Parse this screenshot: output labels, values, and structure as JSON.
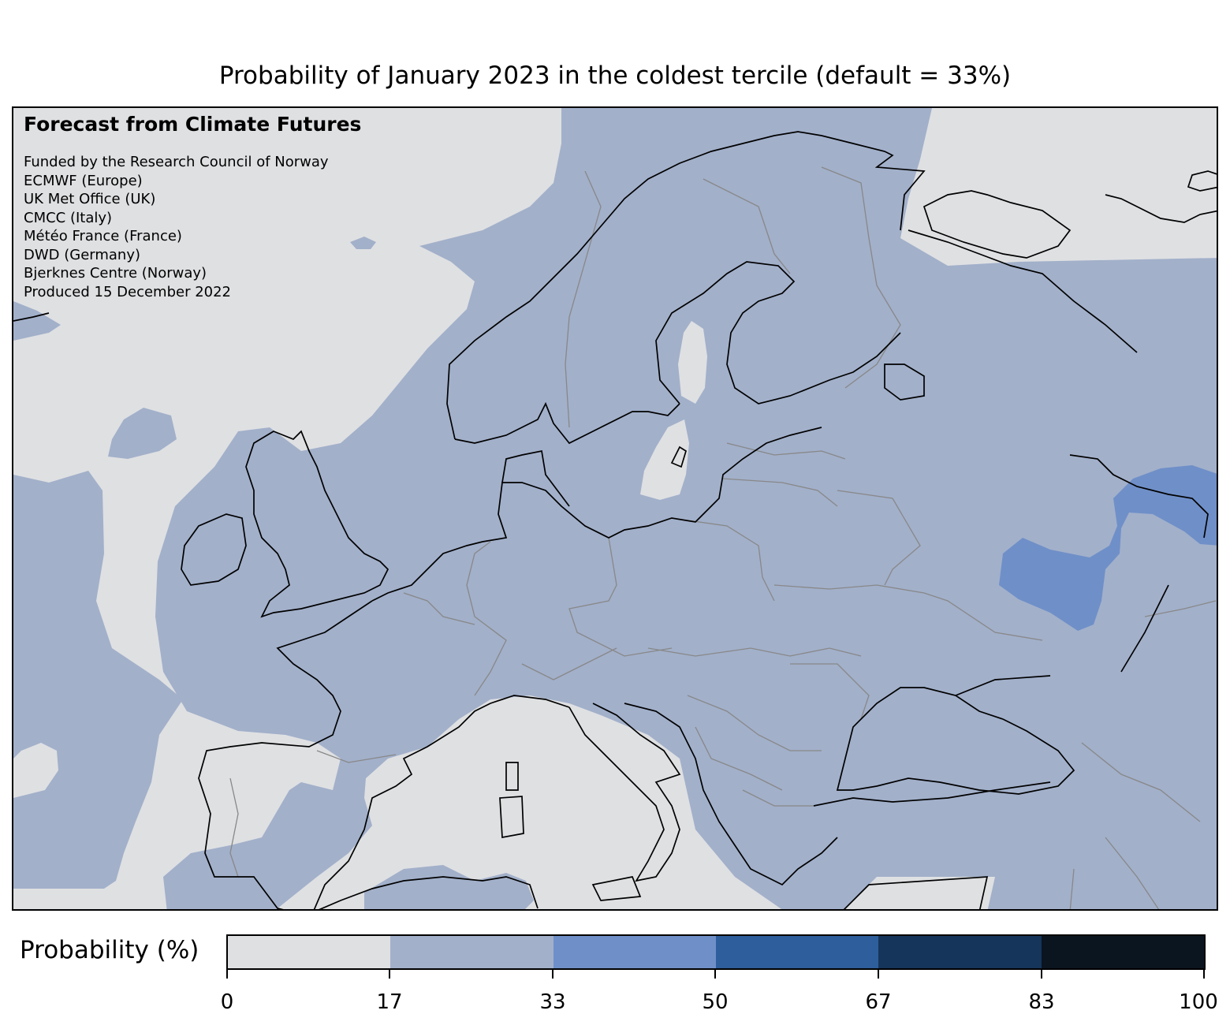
{
  "title": "Probability of January 2023 in the coldest tercile (default = 33%)",
  "info": {
    "heading": "Forecast from Climate Futures",
    "lines": [
      "Funded by the Research Council of Norway",
      "ECMWF (Europe)",
      "UK Met Office (UK)",
      "CMCC (Italy)",
      "Météo France (France)",
      "DWD (Germany)",
      "Bjerknes Centre (Norway)",
      "Produced 15 December 2022"
    ]
  },
  "colorbar": {
    "label": "Probability (%)",
    "ticks": [
      "0",
      "17",
      "33",
      "50",
      "67",
      "83",
      "100"
    ],
    "colors": [
      "#dfe0e2",
      "#a2b0ca",
      "#6f8fc8",
      "#2e5e9b",
      "#15355a",
      "#0b1520"
    ]
  },
  "map": {
    "land_color": "#a2b0ca",
    "low_color": "#dfe0e2",
    "high_color": "#6f8fc8",
    "coast_color": "#000000",
    "border_color": "#888888"
  }
}
